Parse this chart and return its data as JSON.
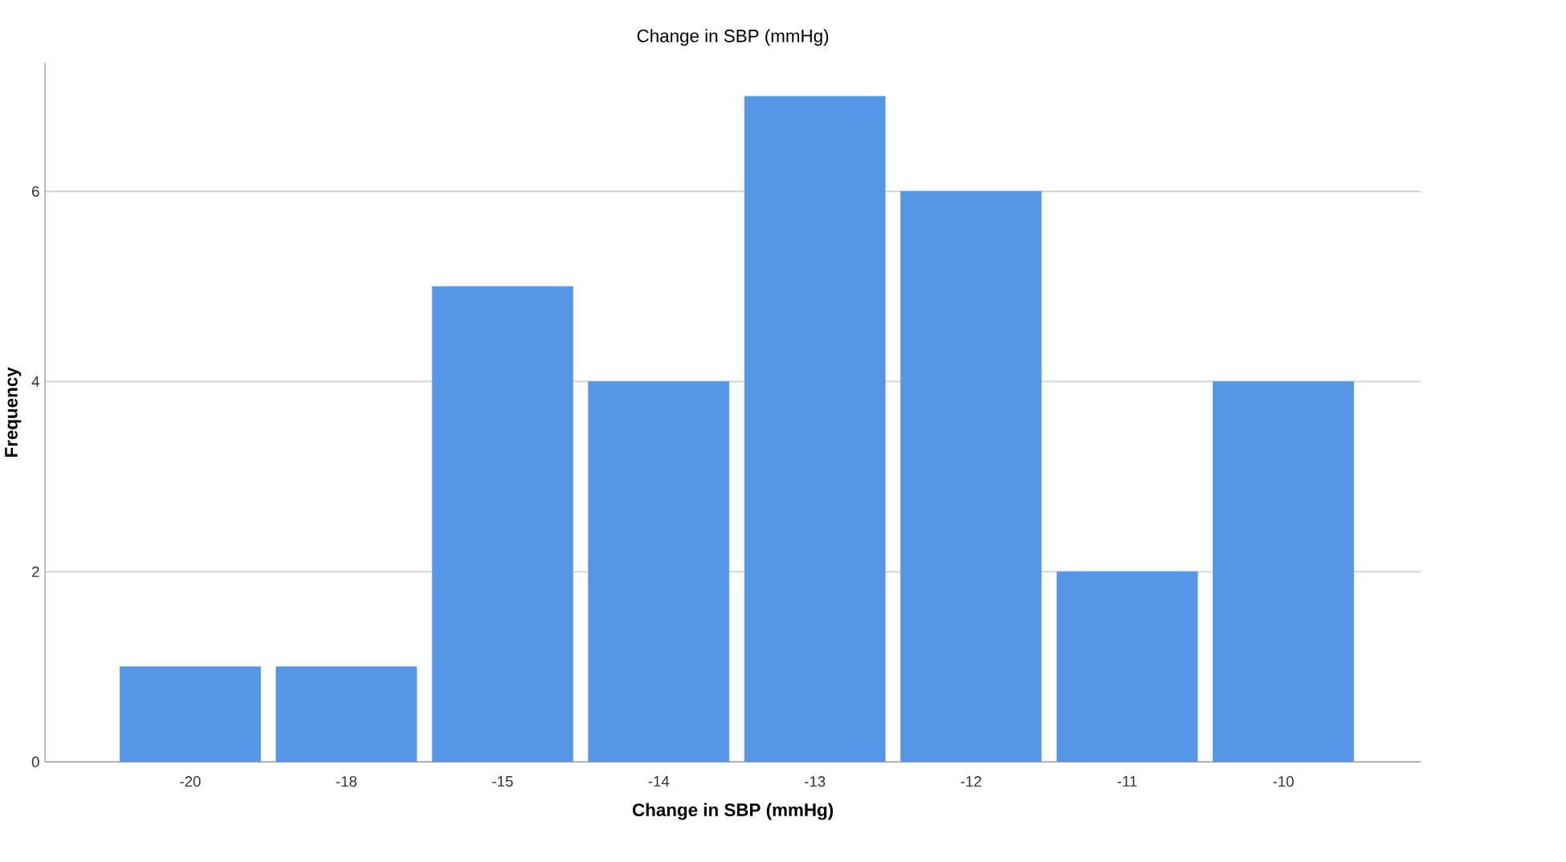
{
  "chart_data": {
    "type": "bar",
    "title": "Change in SBP (mmHg)",
    "xlabel": "Change in SBP (mmHg)",
    "ylabel": "Frequency",
    "categories": [
      "-20",
      "-18",
      "-15",
      "-14",
      "-13",
      "-12",
      "-11",
      "-10"
    ],
    "values": [
      1,
      1,
      5,
      4,
      7,
      6,
      2,
      4
    ],
    "color": "#5596e6",
    "ylim": [
      0,
      7.35
    ],
    "yticks": [
      0,
      2,
      4,
      6
    ],
    "grid": "y"
  }
}
